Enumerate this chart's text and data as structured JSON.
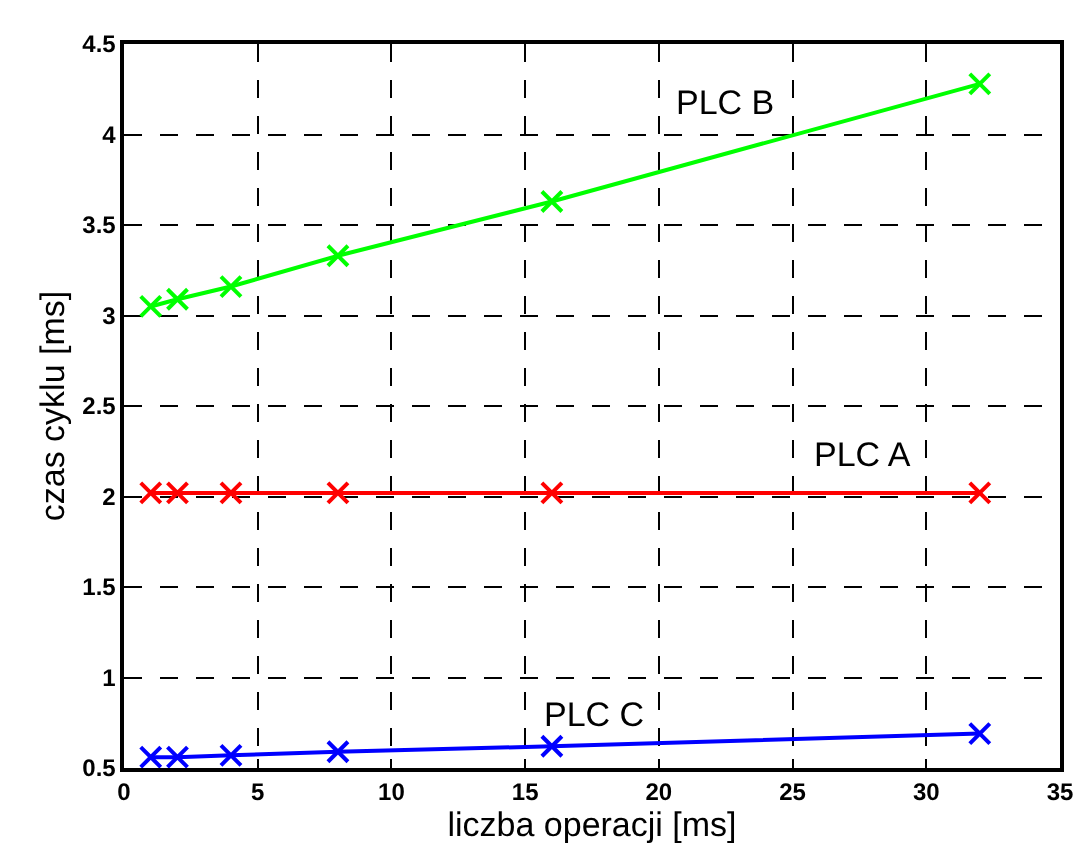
{
  "chart_data": {
    "type": "line",
    "xlabel": "liczba operacji [ms]",
    "ylabel": "czas cyklu [ms]",
    "x": [
      1,
      2,
      4,
      8,
      16,
      32
    ],
    "series": [
      {
        "name": "PLC A",
        "color": "#ff0000",
        "values": [
          2.02,
          2.02,
          2.02,
          2.02,
          2.02,
          2.02
        ]
      },
      {
        "name": "PLC B",
        "color": "#00ff00",
        "values": [
          3.05,
          3.09,
          3.16,
          3.33,
          3.63,
          4.28
        ]
      },
      {
        "name": "PLC C",
        "color": "#0000ff",
        "values": [
          0.56,
          0.56,
          0.57,
          0.59,
          0.62,
          0.69
        ]
      }
    ],
    "xlim": [
      0,
      35
    ],
    "xticks": [
      0,
      5,
      10,
      15,
      20,
      25,
      30,
      35
    ],
    "ylim": [
      0.5,
      4.5
    ],
    "yticks": [
      0.5,
      1,
      1.5,
      2,
      2.5,
      3,
      3.5,
      4,
      4.5
    ],
    "grid": true,
    "legend": false,
    "marker": "cross",
    "line_style": "solid"
  }
}
